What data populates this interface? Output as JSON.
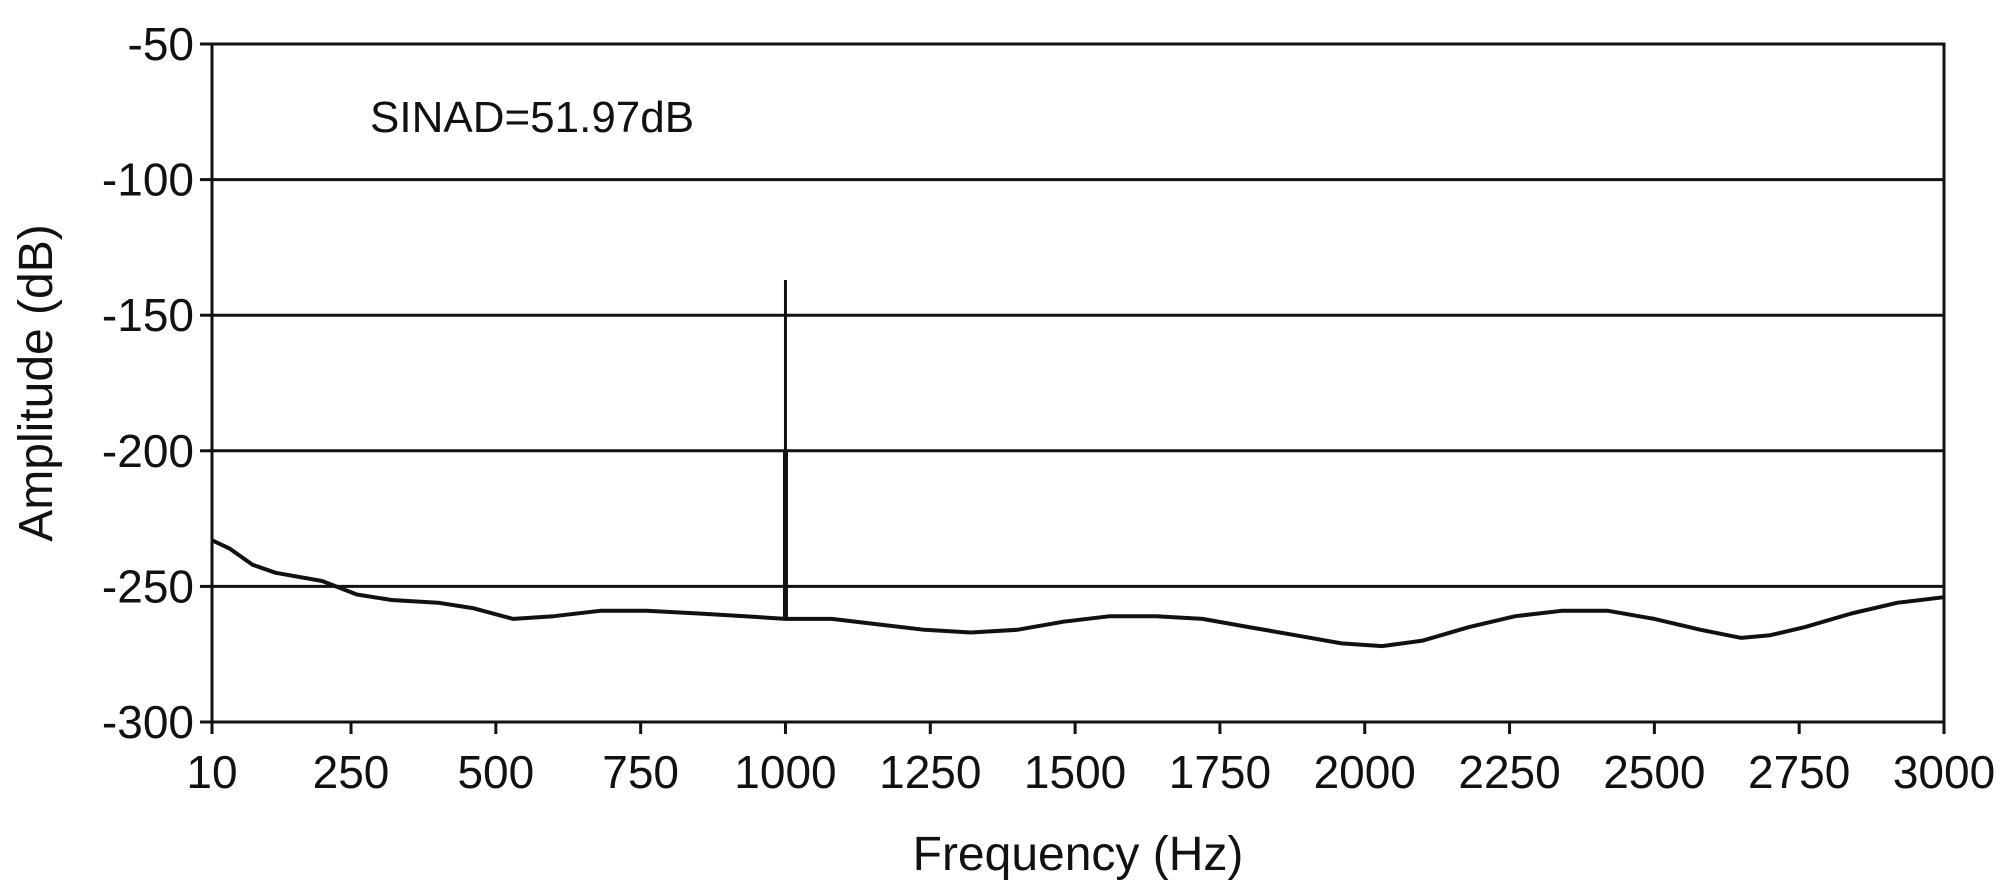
{
  "chart_data": {
    "type": "line",
    "title": "",
    "xlabel": "Frequency (Hz)",
    "ylabel": "Amplitude (dB)",
    "xlim": [
      10,
      3000
    ],
    "ylim": [
      -300,
      -50
    ],
    "x_ticks": [
      10,
      250,
      500,
      750,
      1000,
      1250,
      1500,
      1750,
      2000,
      2250,
      2500,
      2750,
      3000
    ],
    "y_ticks": [
      -50,
      -100,
      -150,
      -200,
      -250,
      -300
    ],
    "grid": "horizontal",
    "line_color": "#111111",
    "annotation": "SINAD=51.97dB",
    "series": [
      {
        "x": [
          10,
          40,
          80,
          120,
          200,
          260,
          320,
          400,
          460,
          530,
          600,
          680,
          760,
          850,
          930,
          1000,
          1080,
          1160,
          1240,
          1320,
          1400,
          1480,
          1560,
          1640,
          1720,
          1800,
          1880,
          1960,
          2030,
          2100,
          2180,
          2260,
          2340,
          2420,
          2500,
          2580,
          2650,
          2700,
          2760,
          2840,
          2920,
          3000
        ],
        "y": [
          -233,
          -236,
          -242,
          -245,
          -248,
          -253,
          -255,
          -256,
          -258,
          -262,
          -261,
          -259,
          -259,
          -260,
          -261,
          -262,
          -262,
          -264,
          -266,
          -267,
          -266,
          -263,
          -261,
          -261,
          -262,
          -265,
          -268,
          -271,
          -272,
          -270,
          -265,
          -261,
          -259,
          -259,
          -262,
          -266,
          -269,
          -268,
          -265,
          -260,
          -256,
          -254
        ]
      }
    ],
    "spike": {
      "x": 1000,
      "y_top": -137,
      "y_base": -262
    }
  }
}
